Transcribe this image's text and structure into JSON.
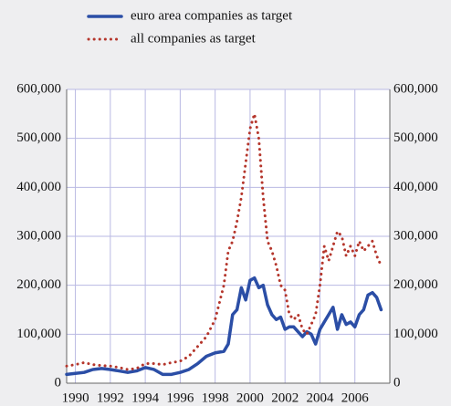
{
  "chart_data": {
    "type": "line",
    "x": [
      1989.5,
      1990,
      1990.5,
      1991,
      1991.5,
      1992,
      1992.5,
      1993,
      1993.5,
      1994,
      1994.5,
      1995,
      1995.5,
      1996,
      1996.5,
      1997,
      1997.5,
      1998,
      1998.5,
      1998.75,
      1999,
      1999.25,
      1999.5,
      1999.75,
      2000,
      2000.25,
      2000.5,
      2000.75,
      2001,
      2001.25,
      2001.5,
      2001.75,
      2002,
      2002.25,
      2002.5,
      2002.75,
      2003,
      2003.25,
      2003.5,
      2003.75,
      2004,
      2004.25,
      2004.5,
      2004.75,
      2005,
      2005.25,
      2005.5,
      2005.75,
      2006,
      2006.25,
      2006.5,
      2006.75,
      2007,
      2007.25,
      2007.5
    ],
    "series": [
      {
        "name": "euro area companies as target",
        "color": "#2b4ea6",
        "style": "solid",
        "values": [
          18000,
          20000,
          22000,
          28000,
          30000,
          28000,
          25000,
          22000,
          25000,
          32000,
          28000,
          18000,
          18000,
          22000,
          28000,
          40000,
          55000,
          62000,
          65000,
          80000,
          140000,
          150000,
          195000,
          170000,
          210000,
          215000,
          195000,
          200000,
          160000,
          140000,
          130000,
          135000,
          110000,
          115000,
          115000,
          105000,
          95000,
          105000,
          100000,
          80000,
          110000,
          125000,
          140000,
          155000,
          110000,
          140000,
          120000,
          125000,
          115000,
          140000,
          150000,
          180000,
          185000,
          175000,
          150000
        ]
      },
      {
        "name": "all companies as target",
        "color": "#b5362c",
        "style": "dotted",
        "values": [
          35000,
          38000,
          42000,
          38000,
          36000,
          35000,
          32000,
          28000,
          30000,
          40000,
          40000,
          38000,
          42000,
          45000,
          55000,
          75000,
          95000,
          130000,
          200000,
          270000,
          290000,
          330000,
          380000,
          450000,
          520000,
          550000,
          500000,
          380000,
          290000,
          270000,
          240000,
          200000,
          190000,
          140000,
          130000,
          140000,
          110000,
          100000,
          120000,
          140000,
          200000,
          280000,
          250000,
          280000,
          310000,
          300000,
          260000,
          280000,
          260000,
          290000,
          270000,
          280000,
          290000,
          260000,
          240000
        ]
      }
    ],
    "xlim": [
      1989.5,
      2008
    ],
    "xticks": [
      1990,
      1992,
      1994,
      1996,
      1998,
      2000,
      2002,
      2004,
      2006
    ],
    "ylim": [
      0,
      600000
    ],
    "yticks": [
      0,
      {
        "value": 100000,
        "label": "100,000"
      },
      {
        "value": 200000,
        "label": "200,000"
      },
      {
        "value": 300000,
        "label": "300,000"
      },
      {
        "value": 400000,
        "label": "400,000"
      },
      {
        "value": 500000,
        "label": "500,000"
      },
      {
        "value": 600000,
        "label": "600,000"
      }
    ],
    "grid": true
  }
}
